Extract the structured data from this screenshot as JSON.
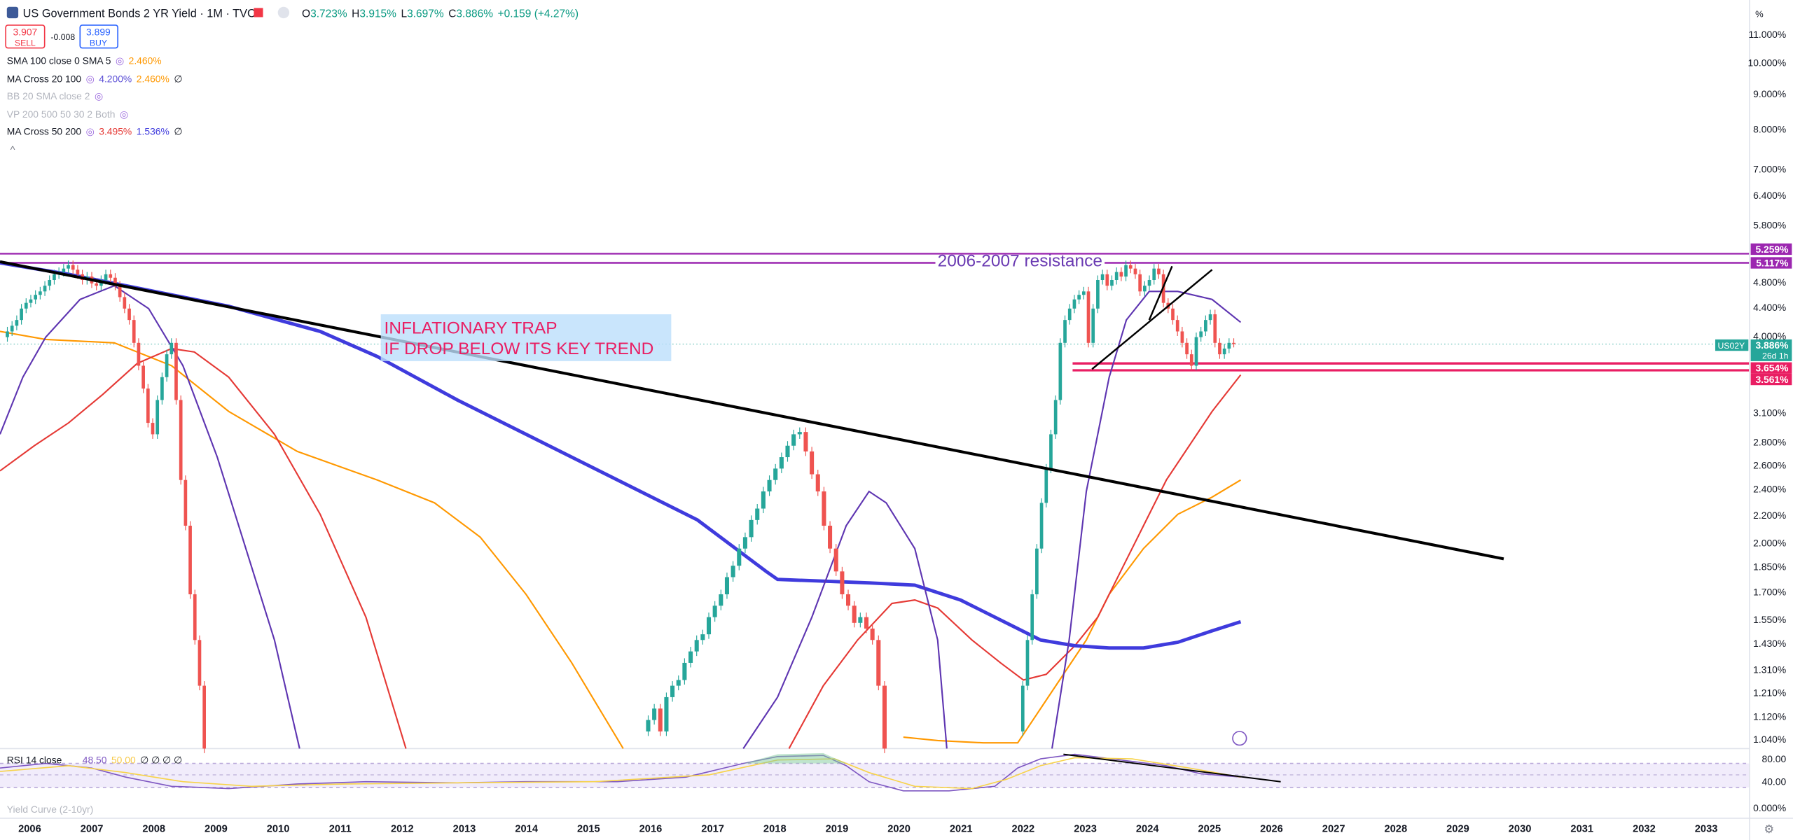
{
  "header": {
    "title": "US Government Bonds 2 YR Yield · 1M · TVC",
    "ohlc": [
      {
        "k": "O",
        "v": "3.723%"
      },
      {
        "k": "H",
        "v": "3.915%"
      },
      {
        "k": "L",
        "v": "3.697%"
      },
      {
        "k": "C",
        "v": "3.886%"
      }
    ],
    "change": "+0.159 (+4.27%)"
  },
  "trade": {
    "sell_price": "3.907",
    "sell": "SELL",
    "spread": "-0.008",
    "buy_price": "3.899",
    "buy": "BUY"
  },
  "indicators": [
    {
      "name": "SMA 100 close 0 SMA 5",
      "values": [
        "2.460%"
      ]
    },
    {
      "name": "MA Cross 20 100",
      "values": [
        "4.200%",
        "2.460%",
        "∅"
      ]
    },
    {
      "name": "BB 20 SMA close 2",
      "values": []
    },
    {
      "name": "VP 200 500 50 30 2 Both",
      "values": []
    },
    {
      "name": "MA Cross 50 200",
      "values": [
        "3.495%",
        "1.536%",
        "∅"
      ]
    }
  ],
  "price_axis": {
    "unit": "%",
    "labels": [
      "11.000%",
      "10.000%",
      "9.000%",
      "8.000%",
      "7.000%",
      "6.400%",
      "5.800%",
      "4.800%",
      "4.400%",
      "4.000%",
      "3.100%",
      "2.800%",
      "2.600%",
      "2.400%",
      "2.200%",
      "2.000%",
      "1.850%",
      "1.700%",
      "1.550%",
      "1.430%",
      "1.310%",
      "1.210%",
      "1.120%",
      "1.040%",
      "80.00",
      "40.00",
      "0.000%"
    ]
  },
  "price_tags": [
    {
      "label": "5.259%"
    },
    {
      "label": "5.117%"
    },
    {
      "symbol": "US02Y",
      "label": "3.886%",
      "countdown": "26d 1h"
    },
    {
      "label": "3.654%"
    },
    {
      "label": "3.561%"
    }
  ],
  "time_axis": [
    "2006",
    "2007",
    "2008",
    "2009",
    "2010",
    "2011",
    "2012",
    "2013",
    "2014",
    "2015",
    "2016",
    "2017",
    "2018",
    "2019",
    "2020",
    "2021",
    "2022",
    "2023",
    "2024",
    "2025",
    "2026",
    "2027",
    "2028",
    "2029",
    "2030",
    "2031",
    "2032",
    "2033"
  ],
  "annotations": {
    "resistance": "2006-2007 resistance",
    "trap": [
      "INFLATIONARY TRAP",
      "IF DROP BELOW ITS KEY TREND"
    ]
  },
  "rsi": {
    "name": "RSI 14 close",
    "values": [
      "48.50",
      "50.00",
      "∅ ∅ ∅ ∅"
    ]
  },
  "yield_curve": "Yield Curve (2-10yr)"
}
